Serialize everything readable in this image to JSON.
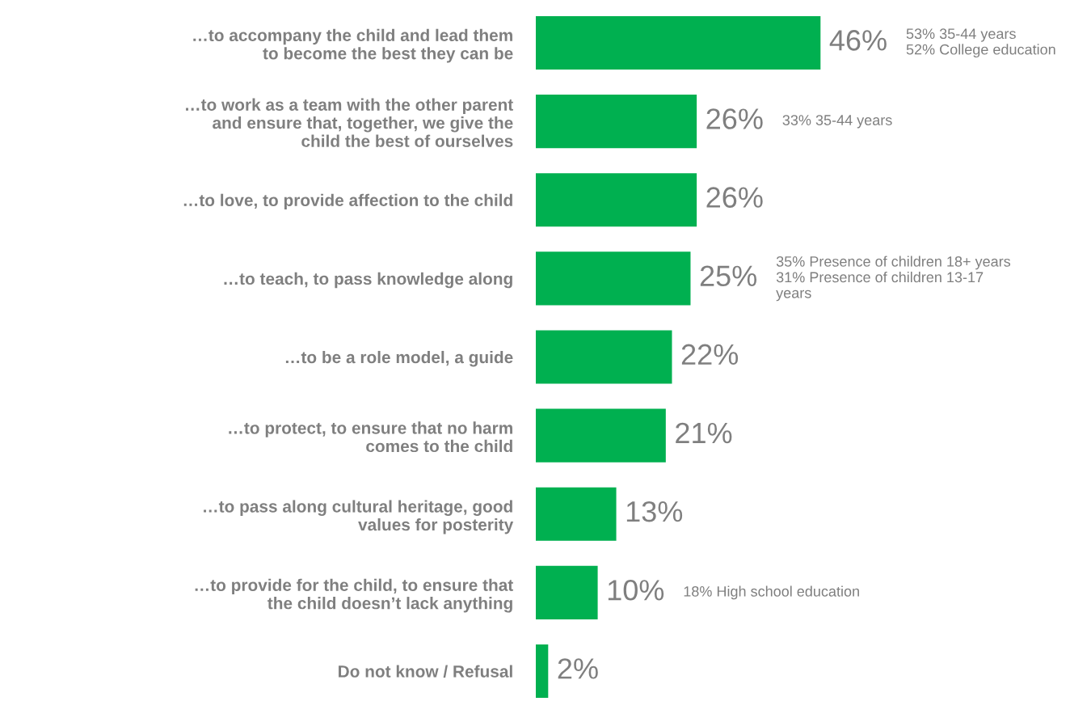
{
  "chart_data": {
    "type": "bar",
    "orientation": "horizontal",
    "categories": [
      "…to accompany the child and lead them\nto become the best they can be",
      "…to work as a team with the other parent\nand ensure that, together, we give the\nchild the best of ourselves",
      "…to love, to provide affection to the child",
      "…to teach, to pass knowledge along",
      "…to be a role model, a guide",
      "…to protect, to ensure that no harm\ncomes to the child",
      "…to pass along cultural heritage, good\nvalues for posterity",
      "…to provide for the child, to ensure that\nthe child doesn’t lack anything",
      "Do not know / Refusal"
    ],
    "values": [
      46,
      26,
      26,
      25,
      22,
      21,
      13,
      10,
      2
    ],
    "value_labels": [
      "46%",
      "26%",
      "26%",
      "25%",
      "22%",
      "21%",
      "13%",
      "10%",
      "2%"
    ],
    "color": "#00b050",
    "tick_labels": "y",
    "grid": false,
    "legend": false,
    "annotations": [
      "53% 35-44 years\n52% College education",
      "33% 35-44 years",
      "35% Presence of children 18+ years\n31% Presence of children 13-17\nyears",
      "18% High school education"
    ]
  }
}
